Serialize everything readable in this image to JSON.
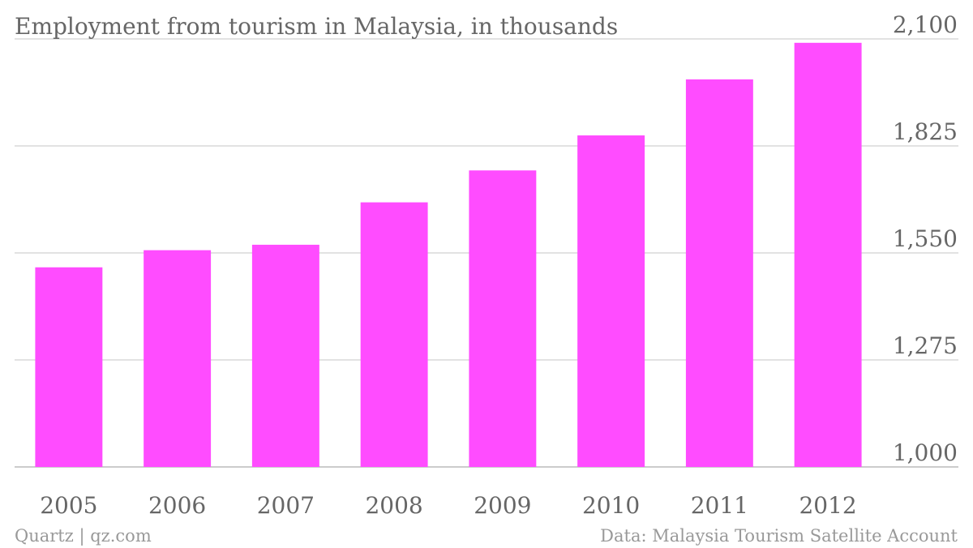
{
  "chart_data": {
    "type": "bar",
    "title": "Employment from tourism in Malaysia, in thousands",
    "categories": [
      "2005",
      "2006",
      "2007",
      "2008",
      "2009",
      "2010",
      "2011",
      "2012"
    ],
    "values": [
      1513,
      1557,
      1571,
      1680,
      1762,
      1852,
      1996,
      2090
    ],
    "ylim": [
      1000,
      2100
    ],
    "yticks": [
      "1,000",
      "1,275",
      "1,550",
      "1,825",
      "2,100"
    ],
    "ytick_values": [
      1000,
      1275,
      1550,
      1825,
      2100
    ],
    "y_axis_side": "right",
    "grid": true,
    "bar_color": "#ff4cff"
  },
  "footer": {
    "left": "Quartz | qz.com",
    "right": "Data: Malaysia Tourism Satellite Account"
  }
}
